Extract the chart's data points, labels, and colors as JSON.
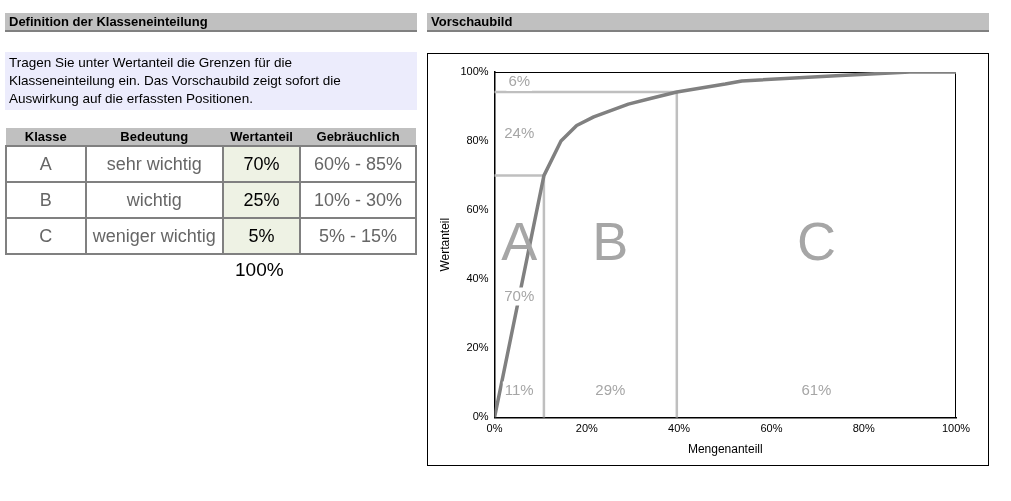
{
  "chart_data": [
    {
      "type": "other",
      "title": "Definition der Klasseneinteilung",
      "annotations": [
        "Tragen Sie unter Wertanteil die Grenzen für die Klasseneinteilung ein. Das Vorschaubild zeigt sofort die Auswirkung auf die erfassten Positionen.",
        "Klasse",
        "Bedeutung",
        "Wertanteil",
        "Gebräuchlich",
        "A",
        "sehr wichtig",
        "70%",
        "60%  - 85%",
        "B",
        "wichtig",
        "25%",
        "10%  - 30%",
        "C",
        "weniger wichtig",
        "5%",
        "5%  - 15%",
        "100%"
      ]
    },
    {
      "type": "line",
      "title": "Vorschaubild",
      "xlabel": "Mengenanteill",
      "ylabel": "Wertanteil",
      "x": [
        0,
        10.7,
        14.4,
        17.8,
        21.5,
        29,
        34,
        39.5,
        50,
        53.6,
        75,
        90,
        100
      ],
      "series": [
        {
          "color": "#808080",
          "values": [
            0,
            70,
            80,
            84.5,
            87,
            90.7,
            92.4,
            94.2,
            96.5,
            97.4,
            99,
            100,
            100
          ]
        }
      ],
      "xlim": [
        0,
        100
      ],
      "ylim": [
        0,
        100
      ],
      "xticks": [
        {
          "value": 0,
          "label": "0%"
        },
        {
          "value": 20,
          "label": "20%"
        },
        {
          "value": 40,
          "label": "40%"
        },
        {
          "value": 60,
          "label": "60%"
        },
        {
          "value": 80,
          "label": "80%"
        },
        {
          "value": 100,
          "label": "100%"
        }
      ],
      "yticks": [
        {
          "value": 0,
          "label": "0%"
        },
        {
          "value": 20,
          "label": "20%"
        },
        {
          "value": 40,
          "label": "40%"
        },
        {
          "value": 60,
          "label": "60%"
        },
        {
          "value": 80,
          "label": "80%"
        },
        {
          "value": 100,
          "label": "100%"
        }
      ],
      "grid": false,
      "legend": false,
      "marker": "none",
      "line_style": "solid",
      "ref_lines": [
        {
          "axis": "x",
          "value": 10.7,
          "color": "#bfbfbf"
        },
        {
          "axis": "y",
          "value": 70,
          "color": "#bfbfbf"
        },
        {
          "axis": "x",
          "value": 39.5,
          "color": "#bfbfbf"
        },
        {
          "axis": "y",
          "value": 94.2,
          "color": "#bfbfbf"
        }
      ],
      "annotations": [
        "A",
        "B",
        "C",
        "6%",
        "24%",
        "70%",
        "11%",
        "29%",
        "61%"
      ]
    }
  ]
}
